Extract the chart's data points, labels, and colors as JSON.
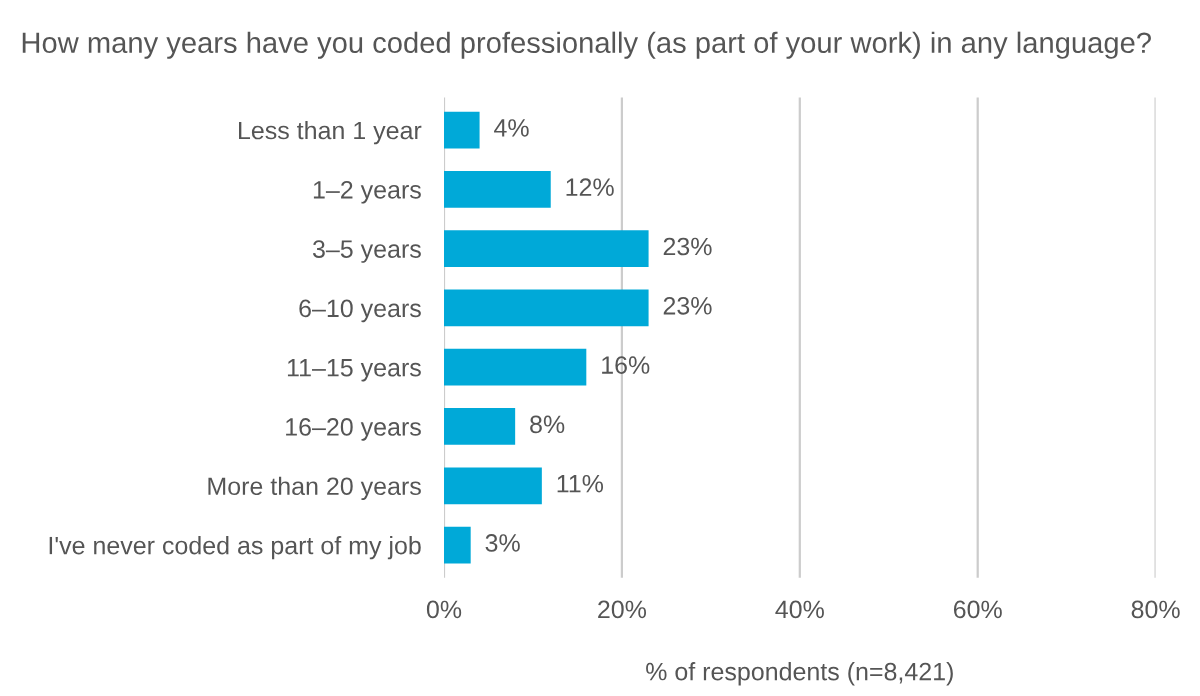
{
  "chart_data": {
    "type": "bar",
    "orientation": "horizontal",
    "title": "How many years have you coded professionally (as part of your work) in any language?",
    "xlabel": "% of respondents (n=8,421)",
    "categories": [
      "Less than 1 year",
      "1–2 years",
      "3–5 years",
      "6–10 years",
      "11–15 years",
      "16–20 years",
      "More than 20 years",
      "I've never coded as part of my job"
    ],
    "values": [
      4,
      12,
      23,
      23,
      16,
      8,
      11,
      3
    ],
    "value_labels": [
      "4%",
      "12%",
      "23%",
      "23%",
      "16%",
      "8%",
      "11%",
      "3%"
    ],
    "color": "#00a9d8",
    "xlim": [
      0,
      80
    ],
    "xticks": [
      {
        "value": 0,
        "label": "0%"
      },
      {
        "value": 20,
        "label": "20%"
      },
      {
        "value": 40,
        "label": "40%"
      },
      {
        "value": 60,
        "label": "60%"
      },
      {
        "value": 80,
        "label": "80%"
      }
    ],
    "grid": "x",
    "legend": false
  }
}
